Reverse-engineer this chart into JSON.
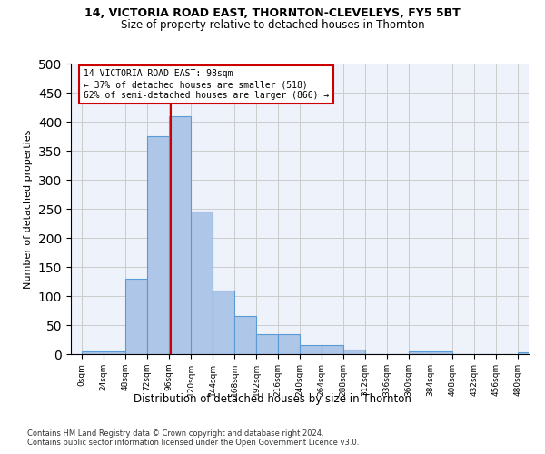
{
  "title1": "14, VICTORIA ROAD EAST, THORNTON-CLEVELEYS, FY5 5BT",
  "title2": "Size of property relative to detached houses in Thornton",
  "xlabel": "Distribution of detached houses by size in Thornton",
  "ylabel": "Number of detached properties",
  "footnote1": "Contains HM Land Registry data © Crown copyright and database right 2024.",
  "footnote2": "Contains public sector information licensed under the Open Government Licence v3.0.",
  "annotation_line1": "14 VICTORIA ROAD EAST: 98sqm",
  "annotation_line2": "← 37% of detached houses are smaller (518)",
  "annotation_line3": "62% of semi-detached houses are larger (866) →",
  "property_size_sqm": 98,
  "bar_edges": [
    0,
    24,
    48,
    72,
    96,
    120,
    144,
    168,
    192,
    216,
    240,
    264,
    288,
    312,
    336,
    360,
    384,
    408,
    432,
    456,
    480
  ],
  "bar_heights": [
    5,
    5,
    130,
    375,
    410,
    245,
    110,
    65,
    35,
    35,
    15,
    15,
    8,
    0,
    0,
    5,
    5,
    0,
    0,
    0,
    3
  ],
  "bar_color": "#aec6e8",
  "bar_edge_color": "#5b9bd5",
  "vline_color": "#cc0000",
  "annotation_box_edgecolor": "#cc0000",
  "grid_color": "#cccccc",
  "background_color": "#eef2fb",
  "ylim": [
    0,
    500
  ],
  "tick_labels": [
    "0sqm",
    "24sqm",
    "48sqm",
    "72sqm",
    "96sqm",
    "120sqm",
    "144sqm",
    "168sqm",
    "192sqm",
    "216sqm",
    "240sqm",
    "264sqm",
    "288sqm",
    "312sqm",
    "336sqm",
    "360sqm",
    "384sqm",
    "408sqm",
    "432sqm",
    "456sqm",
    "480sqm"
  ]
}
